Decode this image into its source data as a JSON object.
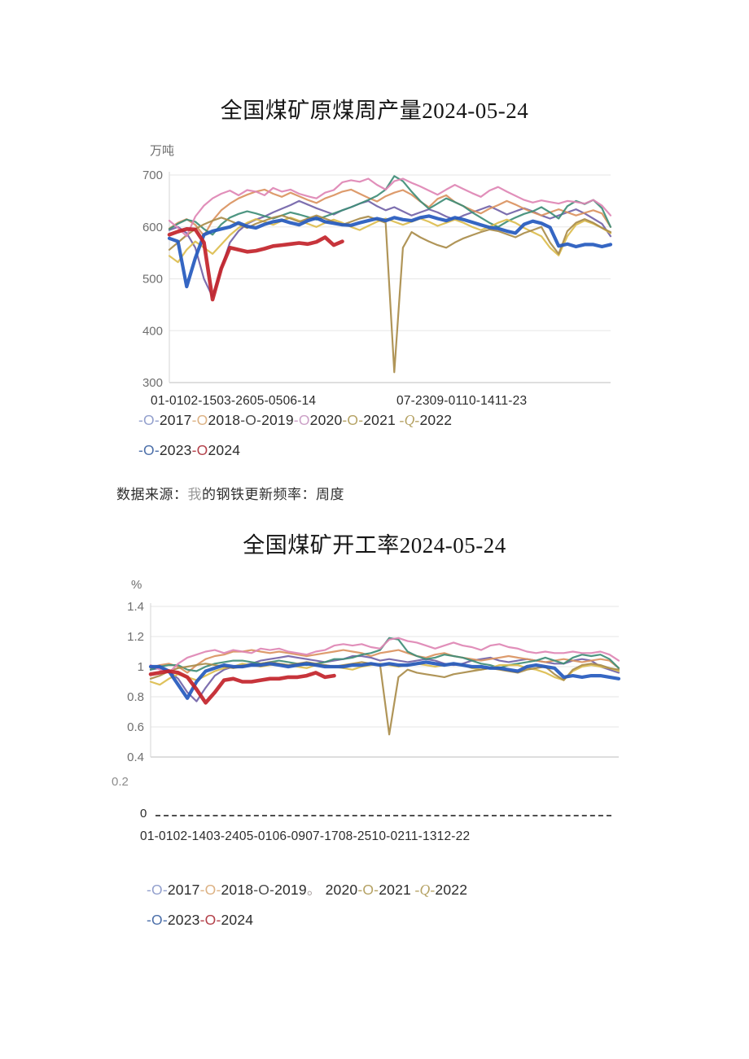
{
  "source_note": {
    "segments": [
      {
        "text": "数据来源：",
        "color": "#2e2e2e"
      },
      {
        "text": "我",
        "color": "#9a9a9a"
      },
      {
        "text": "的钢铁更新频率：",
        "color": "#2e2e2e"
      },
      {
        "text": "周度",
        "color": "#2e2e2e"
      }
    ]
  },
  "chart_data": [
    {
      "type": "line",
      "title": "全国煤矿原煤周产量2024-05-24",
      "unit_label": "万吨",
      "ylabel": "万吨",
      "xlabel": "",
      "ylim": [
        300,
        700
      ],
      "y_ticks": [
        700,
        600,
        500,
        400,
        300
      ],
      "grid": true,
      "legend_position": "bottom",
      "x_tick_text": [
        "01-0102-1503-2605-0506-14",
        "07-2309-0110-1411-23"
      ],
      "legend_rows": [
        [
          {
            "marker": "-O-",
            "color": "#93a0cd",
            "label": "2017"
          },
          {
            "marker": "-O",
            "color": "#dcb183",
            "label": "2018"
          },
          {
            "marker": "-O-",
            "color": "#4d4d4d",
            "label": "2019"
          },
          {
            "marker": "-O",
            "color": "#cb9fc6",
            "label": "2020"
          },
          {
            "marker": "-O-",
            "color": "#b5a264",
            "label": "2021"
          },
          {
            "marker": " -Q-",
            "color": "#b5a264",
            "label": "2022"
          }
        ],
        [
          {
            "marker": "-O-",
            "color": "#4c6fa9",
            "label": "2023"
          },
          {
            "marker": "-O",
            "color": "#b23f48",
            "label": "2024"
          }
        ]
      ],
      "series": [
        {
          "name": "2017",
          "color": "#7263a8",
          "width": 2.2,
          "values": [
            594,
            600,
            588,
            560,
            500,
            465,
            520,
            570,
            592,
            606,
            614,
            620,
            628,
            635,
            642,
            650,
            643,
            636,
            630,
            624,
            632,
            638,
            645,
            650,
            640,
            632,
            638,
            630,
            622,
            628,
            634,
            628,
            620,
            614,
            622,
            628,
            634,
            640,
            632,
            624,
            630,
            636,
            630,
            622,
            616,
            622,
            628,
            634,
            626,
            616,
            606,
            582
          ]
        },
        {
          "name": "2018",
          "color": "#da9260",
          "width": 2.2,
          "values": [
            597,
            608,
            615,
            604,
            583,
            612,
            632,
            645,
            655,
            662,
            668,
            672,
            664,
            658,
            666,
            659,
            652,
            646,
            655,
            661,
            668,
            672,
            664,
            656,
            649,
            659,
            666,
            671,
            662,
            649,
            638,
            654,
            661,
            648,
            640,
            632,
            626,
            635,
            642,
            650,
            643,
            635,
            628,
            622,
            628,
            634,
            628,
            622,
            627,
            632,
            626,
            600
          ]
        },
        {
          "name": "2019",
          "color": "#3f8d77",
          "width": 2.2,
          "values": [
            596,
            606,
            614,
            610,
            596,
            585,
            605,
            618,
            625,
            630,
            626,
            621,
            616,
            622,
            628,
            624,
            619,
            614,
            620,
            626,
            632,
            638,
            645,
            652,
            660,
            672,
            698,
            688,
            668,
            650,
            635,
            645,
            655,
            648,
            640,
            628,
            618,
            608,
            600,
            610,
            618,
            625,
            630,
            638,
            628,
            616,
            640,
            650,
            644,
            652,
            636,
            600
          ]
        },
        {
          "name": "2020",
          "color": "#dcbd4e",
          "width": 2.2,
          "values": [
            544,
            532,
            556,
            572,
            560,
            548,
            566,
            584,
            598,
            608,
            615,
            610,
            604,
            612,
            618,
            612,
            606,
            600,
            608,
            614,
            608,
            600,
            594,
            602,
            610,
            616,
            610,
            604,
            610,
            616,
            610,
            602,
            608,
            614,
            608,
            600,
            594,
            600,
            608,
            614,
            608,
            598,
            590,
            582,
            560,
            545,
            582,
            604,
            612,
            606,
            598,
            588
          ]
        },
        {
          "name": "2021",
          "color": "#a98c4a",
          "width": 2.2,
          "values": [
            556,
            570,
            584,
            596,
            605,
            612,
            618,
            612,
            605,
            598,
            606,
            612,
            618,
            622,
            616,
            610,
            616,
            622,
            616,
            610,
            604,
            610,
            616,
            620,
            614,
            608,
            320,
            560,
            590,
            580,
            572,
            565,
            560,
            570,
            578,
            584,
            590,
            595,
            592,
            586,
            580,
            588,
            594,
            600,
            570,
            548,
            592,
            608,
            615,
            608,
            598,
            590
          ]
        },
        {
          "name": "2022",
          "color": "#de85b4",
          "width": 2.2,
          "values": [
            612,
            598,
            582,
            620,
            641,
            655,
            664,
            670,
            661,
            671,
            668,
            661,
            675,
            668,
            672,
            664,
            659,
            655,
            666,
            671,
            686,
            690,
            687,
            693,
            681,
            672,
            688,
            693,
            685,
            678,
            670,
            662,
            672,
            681,
            673,
            665,
            658,
            670,
            677,
            668,
            660,
            652,
            647,
            651,
            648,
            645,
            650,
            648,
            645,
            652,
            641,
            622
          ]
        },
        {
          "name": "2023",
          "color": "#2459be",
          "width": 4.2,
          "values": [
            578,
            572,
            485,
            540,
            585,
            592,
            596,
            600,
            608,
            601,
            598,
            605,
            610,
            613,
            608,
            604,
            612,
            617,
            610,
            607,
            604,
            603,
            608,
            612,
            616,
            612,
            618,
            614,
            612,
            618,
            621,
            616,
            612,
            618,
            614,
            609,
            604,
            599,
            597,
            592,
            588,
            605,
            611,
            607,
            599,
            563,
            567,
            562,
            566,
            566,
            562,
            566
          ]
        },
        {
          "name": "2024",
          "color": "#c2232a",
          "width": 4.6,
          "values": [
            585,
            591,
            596,
            595,
            570,
            460,
            520,
            560,
            556,
            552,
            554,
            558,
            563,
            565,
            567,
            569,
            567,
            571,
            580,
            565,
            572
          ]
        }
      ]
    },
    {
      "type": "line",
      "title": "全国煤矿开工率2024-05-24",
      "unit_label": "%",
      "ylabel": "%",
      "xlabel": "",
      "ylim": [
        0.4,
        1.4
      ],
      "y_ticks": [
        1.4,
        1.2,
        1,
        0.8,
        0.6,
        0.4
      ],
      "outside_ticks": [
        "0.2",
        "0"
      ],
      "grid": true,
      "legend_position": "bottom",
      "x_tick_text": [
        "01-0102-1403-2405-0106-0907-1708-2510-0211-1312-22"
      ],
      "legend_rows": [
        [
          {
            "marker": "-O-",
            "color": "#93a0cd",
            "label": "2017"
          },
          {
            "marker": "-O-",
            "color": "#dcb183",
            "label": "2018"
          },
          {
            "marker": "-O-",
            "color": "#4d4d4d",
            "label": "2019"
          },
          {
            "marker": "。 ",
            "color": "#a9a0a0",
            "label": "2020"
          },
          {
            "marker": "-O-",
            "color": "#b5a264",
            "label": "2021"
          },
          {
            "marker": " -Q-",
            "color": "#b5a264",
            "label": "2022"
          }
        ],
        [
          {
            "marker": "-O-",
            "color": "#4c6fa9",
            "label": "2023"
          },
          {
            "marker": "-O-",
            "color": "#b23f48",
            "label": "2024"
          }
        ]
      ],
      "series": [
        {
          "name": "2017",
          "color": "#7263a8",
          "width": 2.2,
          "values": [
            0.98,
            0.99,
            0.97,
            0.92,
            0.83,
            0.77,
            0.86,
            0.94,
            0.98,
            1.0,
            1.01,
            1.02,
            1.04,
            1.05,
            1.06,
            1.07,
            1.06,
            1.05,
            1.04,
            1.03,
            1.04,
            1.05,
            1.07,
            1.07,
            1.06,
            1.04,
            1.05,
            1.04,
            1.03,
            1.04,
            1.05,
            1.04,
            1.02,
            1.01,
            1.02,
            1.04,
            1.05,
            1.06,
            1.04,
            1.03,
            1.04,
            1.05,
            1.04,
            1.03,
            1.02,
            1.02,
            1.04,
            1.05,
            1.04,
            1.0,
            0.98,
            0.96
          ]
        },
        {
          "name": "2018",
          "color": "#da9260",
          "width": 2.2,
          "values": [
            0.99,
            1.01,
            1.02,
            1.0,
            0.96,
            1.01,
            1.05,
            1.07,
            1.08,
            1.1,
            1.1,
            1.11,
            1.1,
            1.09,
            1.1,
            1.09,
            1.08,
            1.07,
            1.08,
            1.09,
            1.1,
            1.11,
            1.1,
            1.09,
            1.07,
            1.09,
            1.1,
            1.11,
            1.09,
            1.07,
            1.06,
            1.08,
            1.09,
            1.07,
            1.06,
            1.05,
            1.04,
            1.05,
            1.06,
            1.07,
            1.06,
            1.05,
            1.04,
            1.03,
            1.04,
            1.05,
            1.04,
            1.03,
            1.04,
            1.05,
            1.04,
            0.99
          ]
        },
        {
          "name": "2019",
          "color": "#3f8d77",
          "width": 2.2,
          "values": [
            0.98,
            1.0,
            1.01,
            1.01,
            0.98,
            0.97,
            1.0,
            1.02,
            1.03,
            1.04,
            1.04,
            1.03,
            1.02,
            1.03,
            1.04,
            1.03,
            1.02,
            1.01,
            1.02,
            1.03,
            1.05,
            1.05,
            1.06,
            1.08,
            1.09,
            1.11,
            1.19,
            1.18,
            1.1,
            1.07,
            1.05,
            1.06,
            1.08,
            1.07,
            1.06,
            1.04,
            1.02,
            1.01,
            0.99,
            1.01,
            1.02,
            1.03,
            1.04,
            1.06,
            1.04,
            1.02,
            1.06,
            1.08,
            1.07,
            1.08,
            1.05,
            0.99
          ]
        },
        {
          "name": "2020",
          "color": "#dcbd4e",
          "width": 2.2,
          "values": [
            0.9,
            0.88,
            0.92,
            0.95,
            0.93,
            0.91,
            0.94,
            0.97,
            0.99,
            1.0,
            1.02,
            1.01,
            1.0,
            1.01,
            1.02,
            1.01,
            1.0,
            0.99,
            1.01,
            1.01,
            1.0,
            0.99,
            0.98,
            1.0,
            1.01,
            1.02,
            1.01,
            1.0,
            1.01,
            1.02,
            1.01,
            1.0,
            1.01,
            1.02,
            1.01,
            0.99,
            0.98,
            0.99,
            1.01,
            1.01,
            1.01,
            0.99,
            0.98,
            0.96,
            0.93,
            0.91,
            0.97,
            1.0,
            1.01,
            1.0,
            0.99,
            0.97
          ]
        },
        {
          "name": "2021",
          "color": "#a98c4a",
          "width": 2.2,
          "values": [
            0.92,
            0.94,
            0.97,
            0.99,
            1.0,
            1.01,
            1.02,
            1.01,
            1.0,
            0.99,
            1.0,
            1.01,
            1.02,
            1.03,
            1.02,
            1.01,
            1.02,
            1.03,
            1.02,
            1.01,
            1.0,
            1.01,
            1.02,
            1.03,
            1.02,
            1.01,
            0.55,
            0.93,
            0.98,
            0.96,
            0.95,
            0.94,
            0.93,
            0.95,
            0.96,
            0.97,
            0.98,
            0.99,
            0.98,
            0.97,
            0.96,
            0.98,
            0.99,
            1.0,
            0.95,
            0.91,
            0.98,
            1.01,
            1.02,
            1.01,
            0.99,
            0.98
          ]
        },
        {
          "name": "2022",
          "color": "#de85b4",
          "width": 2.2,
          "values": [
            1.01,
            0.98,
            0.96,
            1.02,
            1.06,
            1.08,
            1.1,
            1.11,
            1.09,
            1.11,
            1.1,
            1.09,
            1.12,
            1.11,
            1.12,
            1.1,
            1.09,
            1.08,
            1.1,
            1.11,
            1.14,
            1.15,
            1.14,
            1.15,
            1.13,
            1.12,
            1.18,
            1.19,
            1.17,
            1.16,
            1.14,
            1.12,
            1.14,
            1.16,
            1.14,
            1.13,
            1.11,
            1.14,
            1.15,
            1.13,
            1.12,
            1.1,
            1.09,
            1.1,
            1.09,
            1.09,
            1.1,
            1.09,
            1.09,
            1.1,
            1.08,
            1.04
          ]
        },
        {
          "name": "2023",
          "color": "#2459be",
          "width": 4.2,
          "values": [
            1.0,
            1.0,
            0.97,
            0.88,
            0.79,
            0.9,
            0.97,
            0.99,
            1.01,
            1.0,
            1.0,
            1.01,
            1.01,
            1.02,
            1.01,
            1.0,
            1.01,
            1.02,
            1.01,
            1.0,
            1.0,
            1.0,
            1.01,
            1.01,
            1.02,
            1.01,
            1.02,
            1.01,
            1.01,
            1.02,
            1.03,
            1.02,
            1.01,
            1.02,
            1.01,
            1.0,
            1.0,
            0.99,
            0.99,
            0.98,
            0.97,
            1.0,
            1.01,
            1.0,
            0.99,
            0.93,
            0.94,
            0.93,
            0.94,
            0.94,
            0.93,
            0.92
          ]
        },
        {
          "name": "2024",
          "color": "#c2232a",
          "width": 4.6,
          "values": [
            0.95,
            0.96,
            0.97,
            0.96,
            0.93,
            0.85,
            0.76,
            0.83,
            0.91,
            0.92,
            0.9,
            0.9,
            0.91,
            0.92,
            0.92,
            0.93,
            0.93,
            0.94,
            0.96,
            0.93,
            0.94
          ]
        }
      ]
    }
  ]
}
